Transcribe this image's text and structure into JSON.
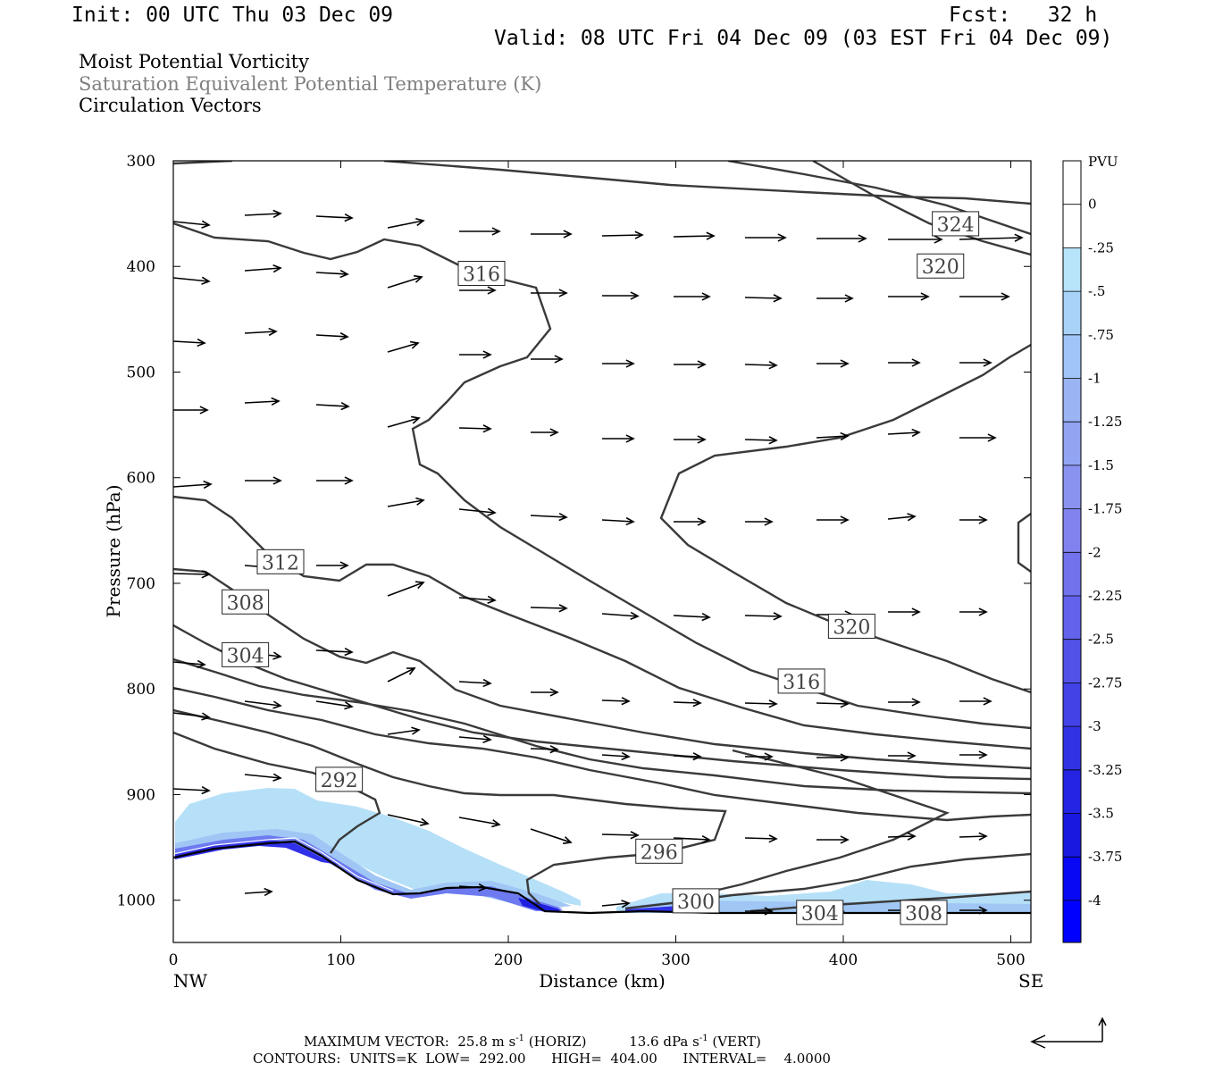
{
  "header": {
    "init": "Init: 00 UTC Thu 03 Dec 09",
    "fcst": "Fcst:   32 h",
    "valid": "Valid: 08 UTC Fri 04 Dec 09 (03 EST Fri 04 Dec 09)"
  },
  "fields": {
    "field1": "Moist Potential Vorticity",
    "field2": "Saturation Equivalent Potential Temperature (K)",
    "field3": "Circulation Vectors"
  },
  "footer": {
    "max_vector_label": "MAXIMUM VECTOR:",
    "max_horiz": "25.8 m s",
    "horiz_tag": "(HORIZ)",
    "max_vert": "13.6 dPa s",
    "vert_tag": "(VERT)",
    "exp": "-1",
    "contours": "CONTOURS:  UNITS=K  LOW=  292.00      HIGH=  404.00      INTERVAL=    4.0000"
  },
  "colors": {
    "contour": "#3a3a3a",
    "pv_light": "#b4e0f7",
    "pv_dark": "#1010e6",
    "arrow": "#000000"
  },
  "chart_data": {
    "type": "cross-section",
    "xlabel": "Distance (km)",
    "ylabel": "Pressure (hPa)",
    "xlim": [
      0,
      512
    ],
    "ylim": [
      1040,
      300
    ],
    "x_ticks": [
      0,
      100,
      200,
      300,
      400,
      500
    ],
    "y_ticks": [
      300,
      400,
      500,
      600,
      700,
      800,
      900,
      1000
    ],
    "x_end_labels": [
      "NW",
      "SE"
    ],
    "contour_labels": [
      {
        "text": "324",
        "x": 467,
        "p": 360
      },
      {
        "text": "320",
        "x": 458,
        "p": 400
      },
      {
        "text": "316",
        "x": 184,
        "p": 407
      },
      {
        "text": "312",
        "x": 64,
        "p": 680
      },
      {
        "text": "308",
        "x": 43,
        "p": 718
      },
      {
        "text": "304",
        "x": 43,
        "p": 768
      },
      {
        "text": "320",
        "x": 405,
        "p": 741
      },
      {
        "text": "316",
        "x": 375,
        "p": 793
      },
      {
        "text": "292",
        "x": 99,
        "p": 886
      },
      {
        "text": "296",
        "x": 290,
        "p": 954
      },
      {
        "text": "300",
        "x": 312,
        "p": 1001
      },
      {
        "text": "304",
        "x": 386,
        "p": 1012
      },
      {
        "text": "308",
        "x": 448,
        "p": 1012
      }
    ],
    "colorbar": {
      "units": "PVU",
      "labels": [
        "0",
        "-.25",
        "-.5",
        "-.75",
        "-1",
        "-1.25",
        "-1.5",
        "-1.75",
        "-2",
        "-2.25",
        "-2.5",
        "-2.75",
        "-3",
        "-3.25",
        "-3.5",
        "-3.75",
        "-4"
      ]
    }
  }
}
